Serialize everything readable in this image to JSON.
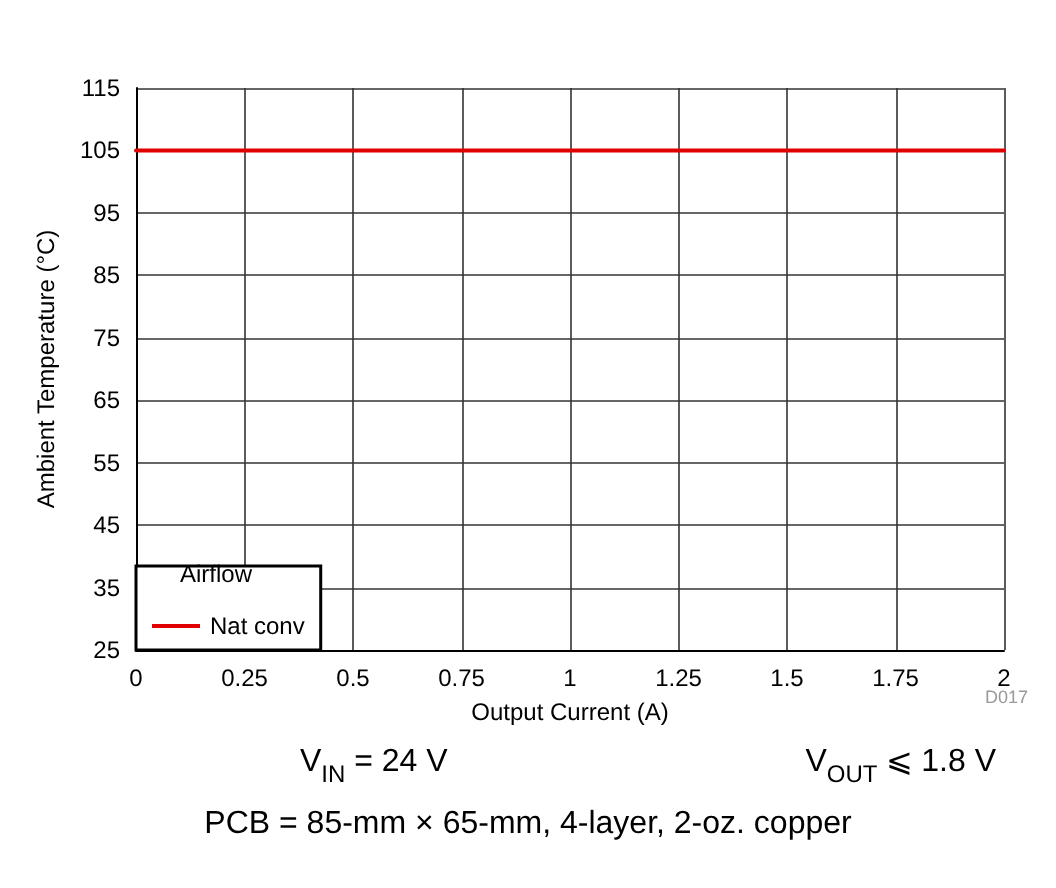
{
  "chart_data": {
    "type": "line",
    "xlabel": "Output Current (A)",
    "ylabel": "Ambient Temperature (°C)",
    "legend_title": "Airflow",
    "series": [
      {
        "name": "Nat conv",
        "color": "#e00000",
        "x": [
          0,
          2
        ],
        "values": [
          105,
          105
        ]
      }
    ],
    "xlim": [
      0,
      2
    ],
    "xticks": [
      0,
      0.25,
      0.5,
      0.75,
      1,
      1.25,
      1.5,
      1.75,
      2
    ],
    "ylim": [
      25,
      115
    ],
    "yticks": [
      25,
      35,
      45,
      55,
      65,
      75,
      85,
      95,
      105,
      115
    ],
    "grid": true,
    "legend": "bottom left",
    "marker": "none",
    "line_style": "solid",
    "annotations": [
      "D017",
      "V$_{IN}$ = 24 V",
      "V$_{OUT}$ ⩽ 1.8 V",
      "PCB = 85-mm × 65-mm, 4-layer, 2-oz. copper"
    ]
  }
}
